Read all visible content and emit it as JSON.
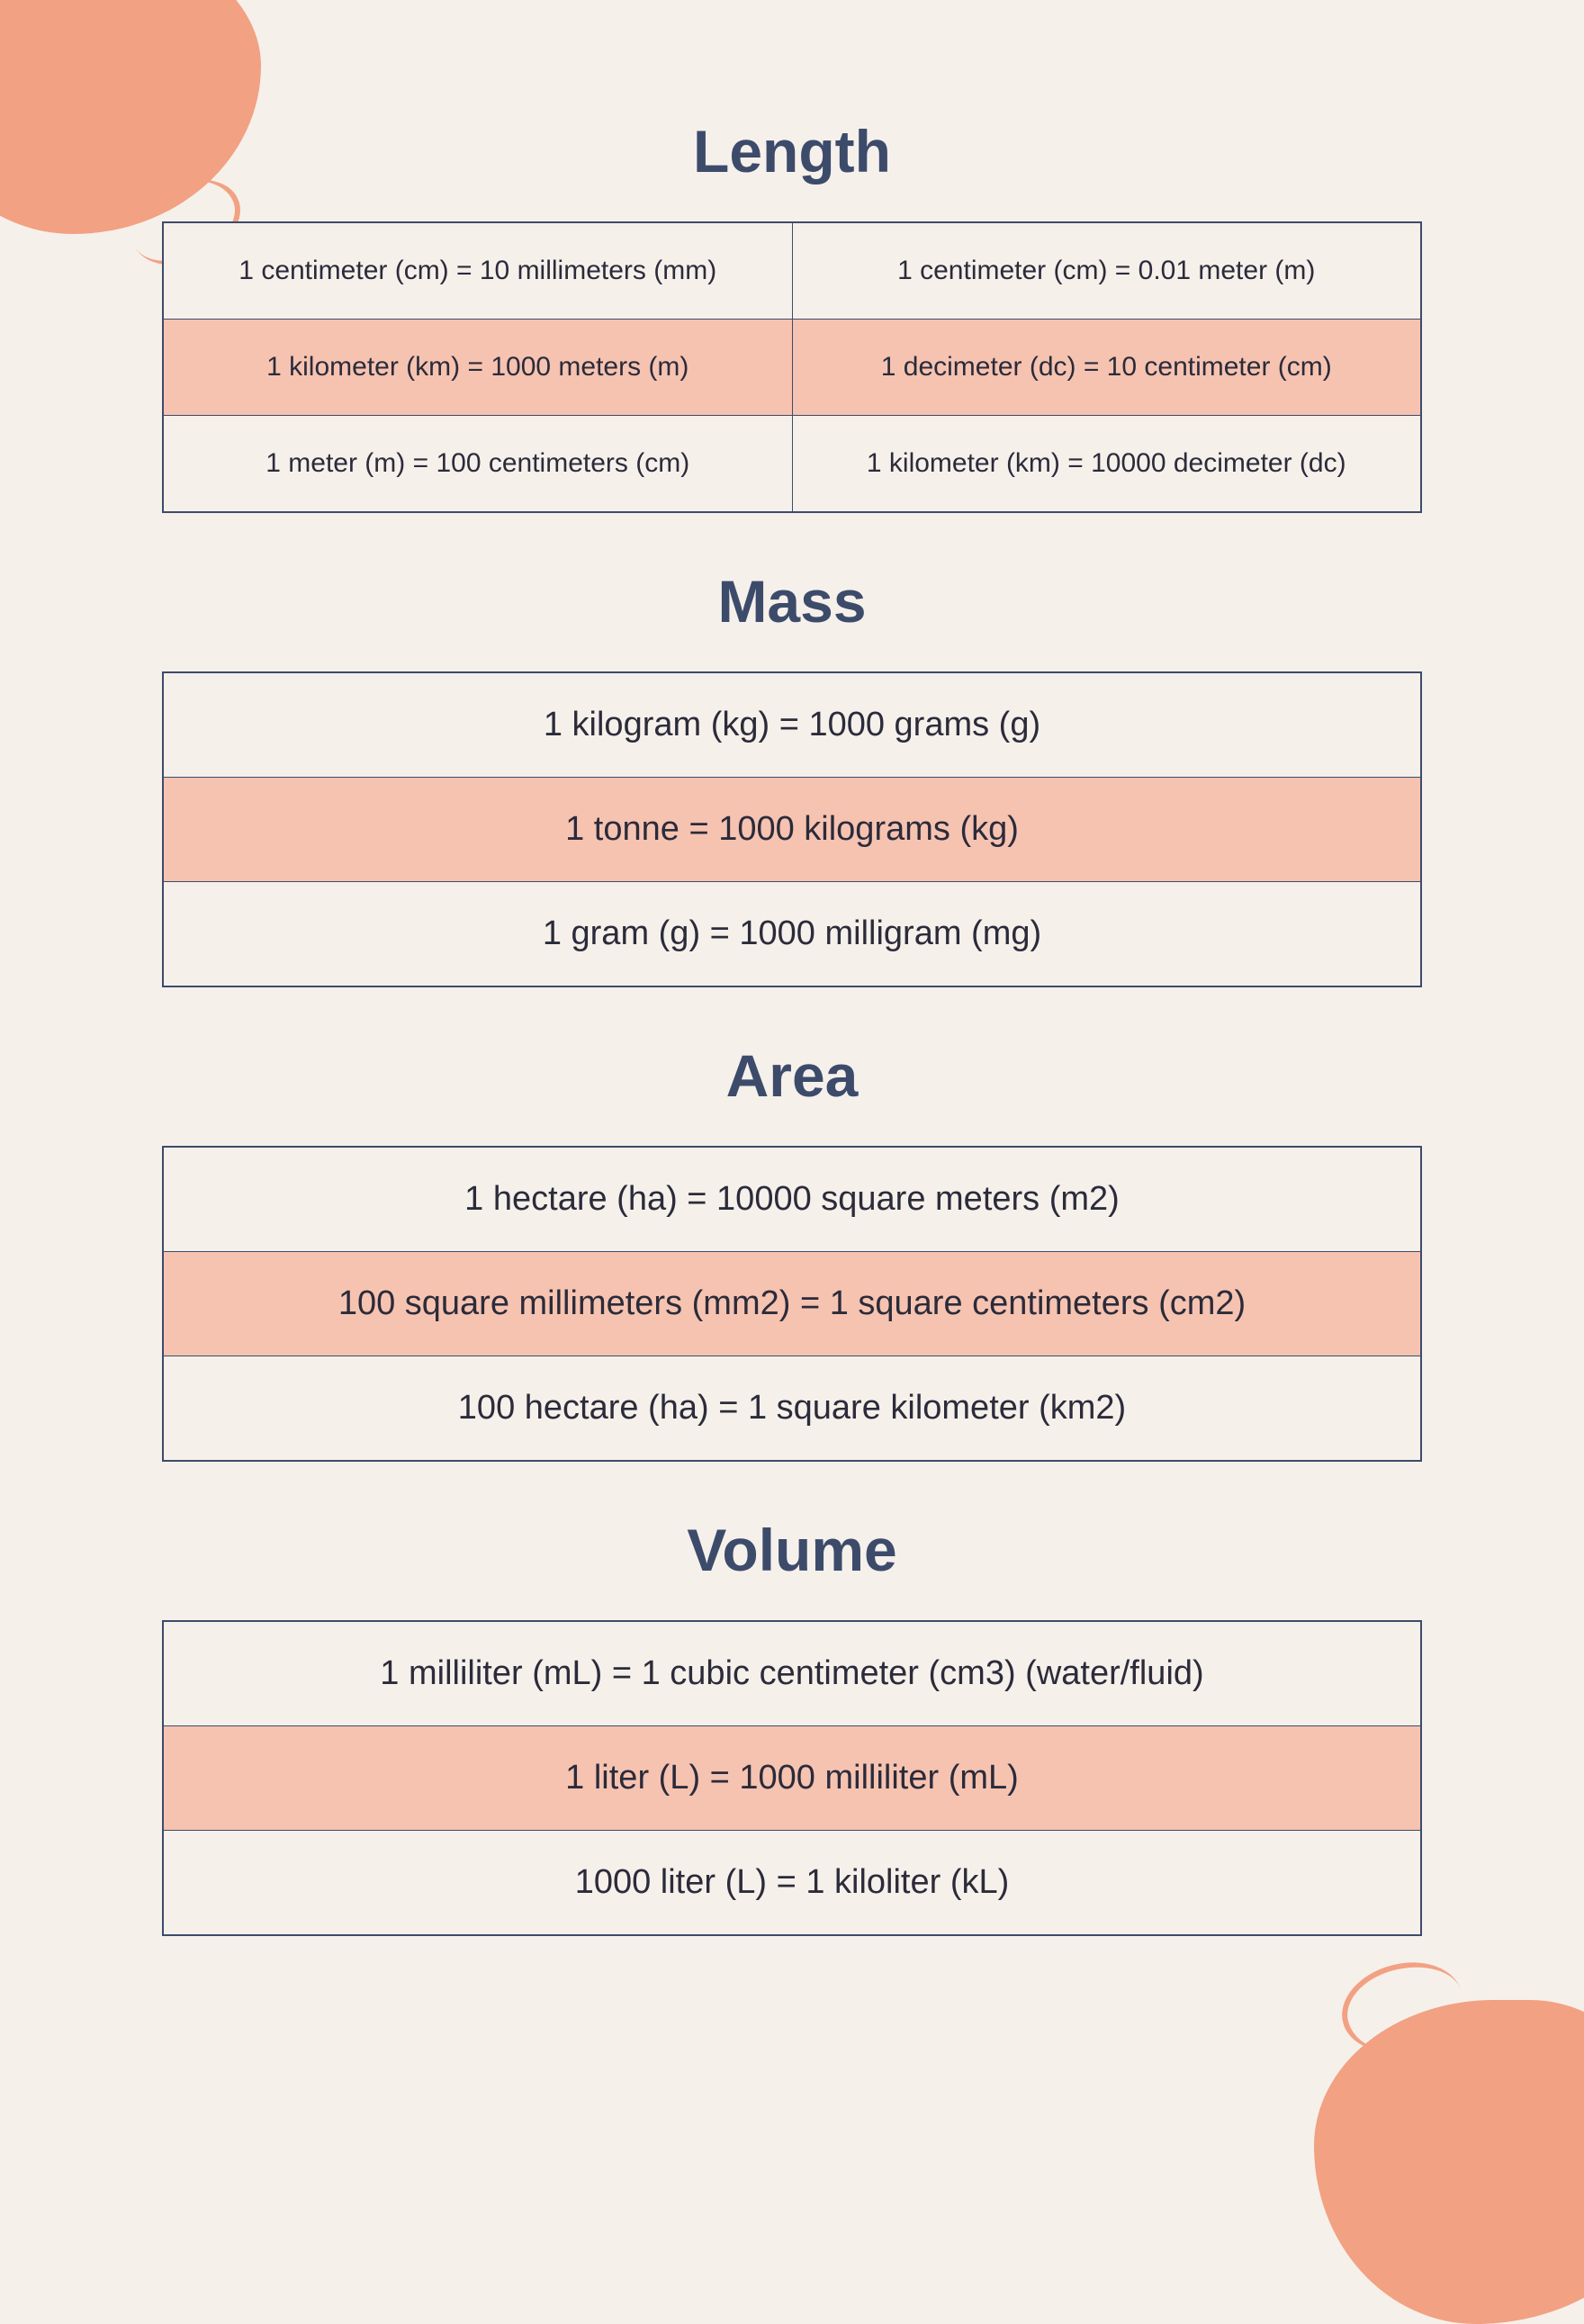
{
  "colors": {
    "background": "#f6f0eb",
    "accent_blob": "#f2a183",
    "title": "#3d4b6b",
    "border": "#3d4b6b",
    "row_highlight": "#f6c3b1",
    "row_normal": "#f6f0eb",
    "text": "#2b2b3a"
  },
  "typography": {
    "title_fontsize": 66,
    "title_fontweight": 800,
    "cell_fontsize_two_col": 30,
    "cell_fontsize_single_col": 38
  },
  "sections": {
    "length": {
      "title": "Length",
      "type": "two-col",
      "rows": [
        {
          "highlight": false,
          "cells": [
            "1 centimeter (cm) = 10 millimeters (mm)",
            "1 centimeter (cm) = 0.01 meter (m)"
          ]
        },
        {
          "highlight": true,
          "cells": [
            "1 kilometer (km) = 1000 meters (m)",
            "1 decimeter (dc) = 10 centimeter (cm)"
          ]
        },
        {
          "highlight": false,
          "cells": [
            "1 meter (m) = 100 centimeters (cm)",
            "1 kilometer (km) = 10000 decimeter (dc)"
          ]
        }
      ]
    },
    "mass": {
      "title": "Mass",
      "type": "single-col",
      "rows": [
        {
          "highlight": false,
          "cells": [
            "1 kilogram (kg) = 1000 grams (g)"
          ]
        },
        {
          "highlight": true,
          "cells": [
            "1 tonne = 1000 kilograms (kg)"
          ]
        },
        {
          "highlight": false,
          "cells": [
            "1 gram (g) = 1000 milligram (mg)"
          ]
        }
      ]
    },
    "area": {
      "title": "Area",
      "type": "single-col",
      "rows": [
        {
          "highlight": false,
          "cells": [
            "1 hectare (ha) = 10000 square meters (m2)"
          ]
        },
        {
          "highlight": true,
          "cells": [
            "100 square millimeters (mm2) = 1 square centimeters (cm2)"
          ]
        },
        {
          "highlight": false,
          "cells": [
            "100 hectare (ha) = 1 square kilometer (km2)"
          ]
        }
      ]
    },
    "volume": {
      "title": "Volume",
      "type": "single-col",
      "rows": [
        {
          "highlight": false,
          "cells": [
            "1 milliliter (mL) = 1 cubic centimeter (cm3) (water/fluid)"
          ]
        },
        {
          "highlight": true,
          "cells": [
            "1 liter (L) = 1000 milliliter (mL)"
          ]
        },
        {
          "highlight": false,
          "cells": [
            "1000 liter (L) = 1 kiloliter (kL)"
          ]
        }
      ]
    }
  }
}
